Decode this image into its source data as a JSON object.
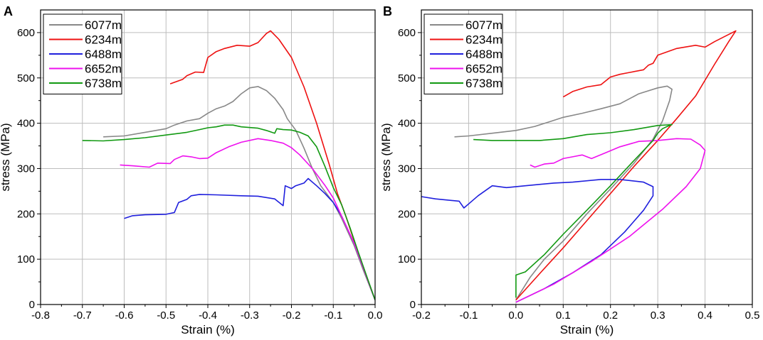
{
  "chart_data": [
    {
      "panel": "A",
      "type": "line",
      "title": "",
      "xlabel": "Strain (%)",
      "ylabel": "stress (MPa)",
      "xlim": [
        -0.8,
        0.0
      ],
      "ylim": [
        0,
        650
      ],
      "x_ticks": [
        -0.8,
        -0.7,
        -0.6,
        -0.5,
        -0.4,
        -0.3,
        -0.2,
        -0.1,
        0.0
      ],
      "x_tick_labels": [
        "-0.8",
        "-0.7",
        "-0.6",
        "-0.5",
        "-0.4",
        "-0.3",
        "-0.2",
        "-0.1",
        "0.0"
      ],
      "y_ticks": [
        0,
        100,
        200,
        300,
        400,
        500,
        600
      ],
      "y_tick_labels": [
        "0",
        "100",
        "200",
        "300",
        "400",
        "500",
        "600"
      ],
      "grid": true,
      "legend_position": "top-left",
      "series": [
        {
          "name": "6077m",
          "color": "#888888",
          "points": [
            [
              -0.65,
              370
            ],
            [
              -0.6,
              372
            ],
            [
              -0.55,
              380
            ],
            [
              -0.5,
              388
            ],
            [
              -0.48,
              396
            ],
            [
              -0.45,
              405
            ],
            [
              -0.42,
              410
            ],
            [
              -0.4,
              422
            ],
            [
              -0.38,
              432
            ],
            [
              -0.36,
              438
            ],
            [
              -0.34,
              448
            ],
            [
              -0.32,
              465
            ],
            [
              -0.3,
              478
            ],
            [
              -0.28,
              481
            ],
            [
              -0.26,
              472
            ],
            [
              -0.24,
              455
            ],
            [
              -0.22,
              430
            ],
            [
              -0.21,
              410
            ],
            [
              -0.19,
              385
            ],
            [
              -0.17,
              345
            ],
            [
              -0.15,
              300
            ],
            [
              -0.13,
              262
            ],
            [
              -0.1,
              225
            ],
            [
              -0.08,
              190
            ],
            [
              -0.05,
              130
            ],
            [
              -0.03,
              80
            ],
            [
              0.0,
              10
            ]
          ]
        },
        {
          "name": "6234m",
          "color": "#ee1111",
          "points": [
            [
              -0.49,
              487
            ],
            [
              -0.46,
              497
            ],
            [
              -0.45,
              505
            ],
            [
              -0.43,
              513
            ],
            [
              -0.41,
              512
            ],
            [
              -0.4,
              545
            ],
            [
              -0.38,
              558
            ],
            [
              -0.36,
              565
            ],
            [
              -0.33,
              572
            ],
            [
              -0.3,
              570
            ],
            [
              -0.28,
              578
            ],
            [
              -0.26,
              598
            ],
            [
              -0.25,
              604
            ],
            [
              -0.23,
              585
            ],
            [
              -0.2,
              545
            ],
            [
              -0.17,
              480
            ],
            [
              -0.14,
              400
            ],
            [
              -0.11,
              310
            ],
            [
              -0.09,
              245
            ],
            [
              -0.07,
              195
            ],
            [
              -0.05,
              140
            ],
            [
              -0.03,
              85
            ],
            [
              0.0,
              10
            ]
          ]
        },
        {
          "name": "6488m",
          "color": "#1f1fdd",
          "points": [
            [
              -0.6,
              190
            ],
            [
              -0.58,
              196
            ],
            [
              -0.55,
              198
            ],
            [
              -0.5,
              199
            ],
            [
              -0.48,
              203
            ],
            [
              -0.47,
              225
            ],
            [
              -0.45,
              232
            ],
            [
              -0.44,
              240
            ],
            [
              -0.42,
              243
            ],
            [
              -0.38,
              242
            ],
            [
              -0.32,
              240
            ],
            [
              -0.28,
              239
            ],
            [
              -0.24,
              233
            ],
            [
              -0.22,
              218
            ],
            [
              -0.215,
              262
            ],
            [
              -0.2,
              256
            ],
            [
              -0.19,
              262
            ],
            [
              -0.17,
              268
            ],
            [
              -0.16,
              278
            ],
            [
              -0.14,
              262
            ],
            [
              -0.12,
              245
            ],
            [
              -0.1,
              225
            ],
            [
              -0.08,
              195
            ],
            [
              -0.05,
              135
            ],
            [
              -0.03,
              85
            ],
            [
              0.0,
              10
            ]
          ]
        },
        {
          "name": "6652m",
          "color": "#ee11ee",
          "points": [
            [
              -0.61,
              308
            ],
            [
              -0.58,
              306
            ],
            [
              -0.54,
              303
            ],
            [
              -0.52,
              312
            ],
            [
              -0.49,
              311
            ],
            [
              -0.48,
              320
            ],
            [
              -0.46,
              328
            ],
            [
              -0.44,
              326
            ],
            [
              -0.42,
              322
            ],
            [
              -0.4,
              323
            ],
            [
              -0.38,
              335
            ],
            [
              -0.35,
              348
            ],
            [
              -0.32,
              358
            ],
            [
              -0.28,
              366
            ],
            [
              -0.25,
              362
            ],
            [
              -0.22,
              356
            ],
            [
              -0.2,
              346
            ],
            [
              -0.18,
              330
            ],
            [
              -0.15,
              300
            ],
            [
              -0.12,
              263
            ],
            [
              -0.1,
              235
            ],
            [
              -0.08,
              195
            ],
            [
              -0.05,
              135
            ],
            [
              -0.03,
              85
            ],
            [
              0.0,
              10
            ]
          ]
        },
        {
          "name": "6738m",
          "color": "#119911",
          "points": [
            [
              -0.7,
              362
            ],
            [
              -0.65,
              361
            ],
            [
              -0.6,
              364
            ],
            [
              -0.55,
              368
            ],
            [
              -0.5,
              374
            ],
            [
              -0.45,
              380
            ],
            [
              -0.42,
              386
            ],
            [
              -0.4,
              390
            ],
            [
              -0.38,
              392
            ],
            [
              -0.36,
              396
            ],
            [
              -0.34,
              396
            ],
            [
              -0.32,
              392
            ],
            [
              -0.28,
              389
            ],
            [
              -0.26,
              384
            ],
            [
              -0.24,
              378
            ],
            [
              -0.235,
              388
            ],
            [
              -0.22,
              386
            ],
            [
              -0.2,
              385
            ],
            [
              -0.18,
              380
            ],
            [
              -0.16,
              372
            ],
            [
              -0.14,
              348
            ],
            [
              -0.12,
              305
            ],
            [
              -0.1,
              258
            ],
            [
              -0.08,
              220
            ],
            [
              -0.06,
              170
            ],
            [
              -0.04,
              115
            ],
            [
              -0.02,
              62
            ],
            [
              0.0,
              10
            ]
          ]
        }
      ]
    },
    {
      "panel": "B",
      "type": "line",
      "title": "",
      "xlabel": "Strain (%)",
      "ylabel": "stress (MPa)",
      "xlim": [
        -0.2,
        0.5
      ],
      "ylim": [
        0,
        650
      ],
      "x_ticks": [
        -0.2,
        -0.1,
        0.0,
        0.1,
        0.2,
        0.3,
        0.4,
        0.5
      ],
      "x_tick_labels": [
        "-0.2",
        "-0.1",
        "0.0",
        "0.1",
        "0.2",
        "0.3",
        "0.4",
        "0.5"
      ],
      "y_ticks": [
        0,
        100,
        200,
        300,
        400,
        500,
        600
      ],
      "y_tick_labels": [
        "0",
        "100",
        "200",
        "300",
        "400",
        "500",
        "600"
      ],
      "grid": true,
      "legend_position": "top-left",
      "series": [
        {
          "name": "6077m",
          "color": "#888888",
          "points": [
            [
              0.0,
              10
            ],
            [
              0.03,
              60
            ],
            [
              0.06,
              100
            ],
            [
              0.1,
              140
            ],
            [
              0.15,
              200
            ],
            [
              0.2,
              255
            ],
            [
              0.25,
              312
            ],
            [
              0.29,
              365
            ],
            [
              0.31,
              405
            ],
            [
              0.325,
              450
            ],
            [
              0.33,
              475
            ],
            [
              0.32,
              482
            ],
            [
              0.3,
              478
            ],
            [
              0.26,
              465
            ],
            [
              0.22,
              443
            ],
            [
              0.18,
              432
            ],
            [
              0.14,
              422
            ],
            [
              0.1,
              413
            ],
            [
              0.07,
              403
            ],
            [
              0.04,
              393
            ],
            [
              0.0,
              384
            ],
            [
              -0.05,
              378
            ],
            [
              -0.1,
              372
            ],
            [
              -0.13,
              370
            ]
          ]
        },
        {
          "name": "6234m",
          "color": "#ee1111",
          "points": [
            [
              0.0,
              10
            ],
            [
              0.05,
              68
            ],
            [
              0.1,
              125
            ],
            [
              0.15,
              185
            ],
            [
              0.2,
              245
            ],
            [
              0.25,
              305
            ],
            [
              0.3,
              362
            ],
            [
              0.34,
              410
            ],
            [
              0.38,
              460
            ],
            [
              0.42,
              530
            ],
            [
              0.45,
              580
            ],
            [
              0.465,
              604
            ],
            [
              0.42,
              580
            ],
            [
              0.4,
              568
            ],
            [
              0.38,
              572
            ],
            [
              0.34,
              565
            ],
            [
              0.3,
              550
            ],
            [
              0.29,
              532
            ],
            [
              0.28,
              528
            ],
            [
              0.27,
              518
            ],
            [
              0.24,
              512
            ],
            [
              0.22,
              508
            ],
            [
              0.2,
              502
            ],
            [
              0.18,
              485
            ],
            [
              0.15,
              480
            ],
            [
              0.12,
              470
            ],
            [
              0.1,
              458
            ]
          ]
        },
        {
          "name": "6488m",
          "color": "#1f1fdd",
          "points": [
            [
              0.0,
              5
            ],
            [
              0.06,
              35
            ],
            [
              0.12,
              70
            ],
            [
              0.18,
              110
            ],
            [
              0.23,
              160
            ],
            [
              0.27,
              208
            ],
            [
              0.29,
              240
            ],
            [
              0.29,
              260
            ],
            [
              0.27,
              270
            ],
            [
              0.22,
              276
            ],
            [
              0.18,
              276
            ],
            [
              0.12,
              270
            ],
            [
              0.08,
              268
            ],
            [
              0.02,
              262
            ],
            [
              -0.02,
              258
            ],
            [
              -0.05,
              262
            ],
            [
              -0.08,
              240
            ],
            [
              -0.1,
              222
            ],
            [
              -0.11,
              213
            ],
            [
              -0.12,
              228
            ],
            [
              -0.17,
              233
            ],
            [
              -0.2,
              238
            ]
          ]
        },
        {
          "name": "6652m",
          "color": "#ee11ee",
          "points": [
            [
              0.0,
              5
            ],
            [
              0.08,
              45
            ],
            [
              0.16,
              95
            ],
            [
              0.24,
              150
            ],
            [
              0.31,
              210
            ],
            [
              0.36,
              260
            ],
            [
              0.39,
              300
            ],
            [
              0.4,
              340
            ],
            [
              0.39,
              352
            ],
            [
              0.37,
              365
            ],
            [
              0.34,
              366
            ],
            [
              0.3,
              362
            ],
            [
              0.26,
              360
            ],
            [
              0.22,
              348
            ],
            [
              0.19,
              335
            ],
            [
              0.16,
              322
            ],
            [
              0.14,
              330
            ],
            [
              0.12,
              326
            ],
            [
              0.1,
              322
            ],
            [
              0.08,
              312
            ],
            [
              0.06,
              310
            ],
            [
              0.04,
              303
            ],
            [
              0.03,
              308
            ]
          ]
        },
        {
          "name": "6738m",
          "color": "#119911",
          "points": [
            [
              0.0,
              15
            ],
            [
              0.0,
              65
            ],
            [
              0.02,
              72
            ],
            [
              0.06,
              110
            ],
            [
              0.1,
              155
            ],
            [
              0.15,
              208
            ],
            [
              0.2,
              262
            ],
            [
              0.25,
              318
            ],
            [
              0.29,
              362
            ],
            [
              0.3,
              378
            ],
            [
              0.31,
              388
            ],
            [
              0.32,
              393
            ],
            [
              0.33,
              397
            ],
            [
              0.3,
              395
            ],
            [
              0.25,
              386
            ],
            [
              0.2,
              379
            ],
            [
              0.15,
              375
            ],
            [
              0.1,
              366
            ],
            [
              0.05,
              362
            ],
            [
              0.0,
              362
            ],
            [
              -0.05,
              362
            ],
            [
              -0.09,
              364
            ]
          ]
        }
      ]
    }
  ]
}
